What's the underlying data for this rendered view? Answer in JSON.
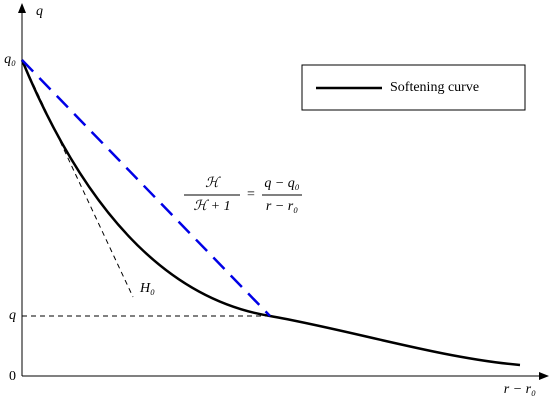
{
  "axes": {
    "y_label": "q",
    "x_label": "r − r₀",
    "y_ticks": [
      "q₀",
      "q",
      "0"
    ]
  },
  "legend": {
    "label": "Softening curve"
  },
  "tangent_label": "H₀",
  "formula": {
    "lhs_numerator": "ℋ",
    "lhs_denominator": "ℋ + 1",
    "equals": "=",
    "rhs_numerator": "q − q₀",
    "rhs_denominator": "r − r₀"
  }
}
